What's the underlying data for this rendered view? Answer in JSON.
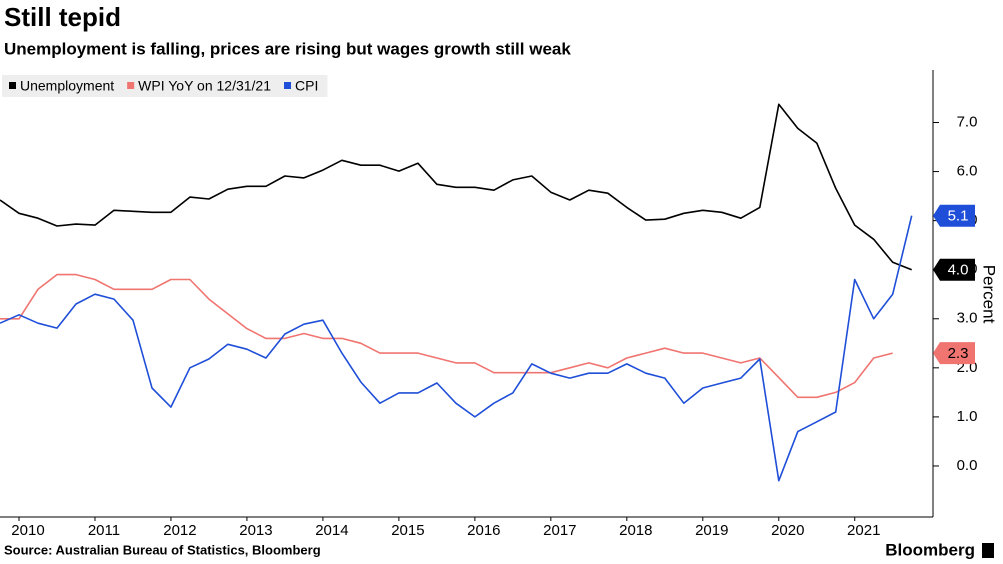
{
  "chart_data": {
    "type": "line",
    "title": "Still tepid",
    "subtitle": "Unemployment is falling, prices are rising but wages growth still weak",
    "source": "Source: Australian Bureau of Statistics, Bloomberg",
    "brand": "Bloomberg",
    "y_axis_label": "Percent",
    "legend_position": "top-left",
    "grid": false,
    "xlim": [
      2010.25,
      2022.53
    ],
    "xticks": [
      {
        "value": 2010.5,
        "label": "2010"
      },
      {
        "value": 2011.5,
        "label": "2011"
      },
      {
        "value": 2012.5,
        "label": "2012"
      },
      {
        "value": 2013.5,
        "label": "2013"
      },
      {
        "value": 2014.5,
        "label": "2014"
      },
      {
        "value": 2015.5,
        "label": "2015"
      },
      {
        "value": 2016.5,
        "label": "2016"
      },
      {
        "value": 2017.5,
        "label": "2017"
      },
      {
        "value": 2018.5,
        "label": "2018"
      },
      {
        "value": 2019.5,
        "label": "2019"
      },
      {
        "value": 2020.5,
        "label": "2020"
      },
      {
        "value": 2021.5,
        "label": "2021"
      }
    ],
    "ylim": [
      -1.04,
      8.07
    ],
    "yticks": [
      {
        "value": 0,
        "label": "0.0"
      },
      {
        "value": 1,
        "label": "1.0"
      },
      {
        "value": 2,
        "label": "2.0"
      },
      {
        "value": 3,
        "label": "3.0"
      },
      {
        "value": 4,
        "label": "4.0"
      },
      {
        "value": 5,
        "label": "5.0"
      },
      {
        "value": 6,
        "label": "6.0"
      },
      {
        "value": 7,
        "label": "7.0"
      }
    ],
    "x": [
      2010.25,
      2010.5,
      2010.75,
      2011,
      2011.25,
      2011.5,
      2011.75,
      2012,
      2012.25,
      2012.5,
      2012.75,
      2013,
      2013.25,
      2013.5,
      2013.75,
      2014,
      2014.25,
      2014.5,
      2014.75,
      2015,
      2015.25,
      2015.5,
      2015.75,
      2016,
      2016.25,
      2016.5,
      2016.75,
      2017,
      2017.25,
      2017.5,
      2017.75,
      2018,
      2018.25,
      2018.5,
      2018.75,
      2019,
      2019.25,
      2019.5,
      2019.75,
      2020,
      2020.25,
      2020.5,
      2020.75,
      2021,
      2021.25,
      2021.5,
      2021.75,
      2022,
      2022.25
    ],
    "series": [
      {
        "name": "Unemployment",
        "color": "#000000",
        "end_label": "4.0",
        "values": [
          5.42,
          5.15,
          5.05,
          4.89,
          4.93,
          4.91,
          5.21,
          5.19,
          5.17,
          5.17,
          5.48,
          5.44,
          5.64,
          5.7,
          5.7,
          5.91,
          5.87,
          6.03,
          6.23,
          6.13,
          6.13,
          6.01,
          6.17,
          5.74,
          5.68,
          5.68,
          5.62,
          5.83,
          5.91,
          5.58,
          5.42,
          5.62,
          5.56,
          5.27,
          5.01,
          5.03,
          5.15,
          5.21,
          5.17,
          5.05,
          5.27,
          7.37,
          6.88,
          6.58,
          5.66,
          4.91,
          4.62,
          4.15,
          4
        ]
      },
      {
        "name": "WPI YoY on 12/31/21",
        "color": "#f07470",
        "end_label": "2.3",
        "values": [
          3,
          3,
          3.6,
          3.9,
          3.9,
          3.8,
          3.6,
          3.6,
          3.6,
          3.8,
          3.8,
          3.4,
          3.1,
          2.8,
          2.6,
          2.6,
          2.7,
          2.6,
          2.6,
          2.5,
          2.3,
          2.3,
          2.3,
          2.2,
          2.1,
          2.1,
          1.9,
          1.9,
          1.9,
          1.9,
          2,
          2.1,
          2,
          2.2,
          2.3,
          2.4,
          2.3,
          2.3,
          2.2,
          2.1,
          2.2,
          1.8,
          1.4,
          1.4,
          1.5,
          1.7,
          2.2,
          2.3,
          null
        ]
      },
      {
        "name": "CPI",
        "color": "#1f4fd8",
        "end_label": "5.1",
        "values": [
          2.91,
          3.08,
          2.91,
          2.81,
          3.3,
          3.5,
          3.4,
          2.97,
          1.59,
          1.2,
          2,
          2.18,
          2.48,
          2.38,
          2.2,
          2.69,
          2.89,
          2.97,
          2.3,
          1.71,
          1.28,
          1.49,
          1.49,
          1.69,
          1.28,
          1,
          1.28,
          1.49,
          2.08,
          1.89,
          1.79,
          1.89,
          1.89,
          2.08,
          1.89,
          1.79,
          1.28,
          1.59,
          1.69,
          1.79,
          2.18,
          -0.3,
          0.7,
          0.9,
          1.1,
          3.8,
          3,
          3.5,
          5.1
        ]
      }
    ]
  }
}
